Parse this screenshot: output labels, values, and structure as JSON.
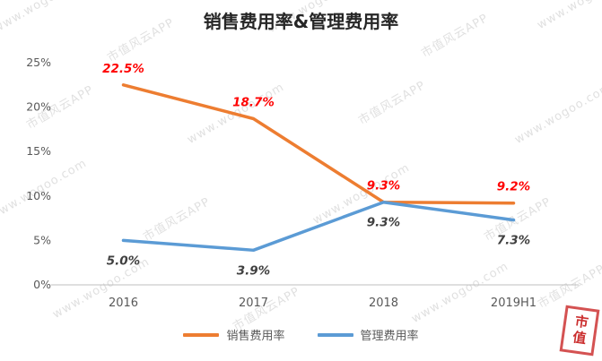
{
  "title": "销售费用率&管理费用率",
  "watermark": {
    "brand": "市值风云APP",
    "site": "www.wogoo.com",
    "seal_text": "市值"
  },
  "colors": {
    "title_text": "#262626",
    "axis_line": "#bfbfbf",
    "tick_text": "#595959",
    "legend_text": "#595959",
    "watermark_text": "#919191",
    "seal_red": "#c00000"
  },
  "chart_data": {
    "type": "line",
    "categories": [
      "2016",
      "2017",
      "2018",
      "2019H1"
    ],
    "series": [
      {
        "name": "销售费用率",
        "values": [
          22.5,
          18.7,
          9.3,
          9.2
        ],
        "labels": [
          "22.5%",
          "18.7%",
          "9.3%",
          "9.2%"
        ],
        "color": "#ED7D31",
        "label_color": "#FF0000",
        "label_position": "above"
      },
      {
        "name": "管理费用率",
        "values": [
          5.0,
          3.9,
          9.3,
          7.3
        ],
        "labels": [
          "5.0%",
          "3.9%",
          "9.3%",
          "7.3%"
        ],
        "color": "#5B9BD5",
        "label_color": "#404040",
        "label_position": "below"
      }
    ],
    "ylim": [
      0,
      25
    ],
    "ytick_step": 5,
    "ytick_labels": [
      "0%",
      "5%",
      "10%",
      "15%",
      "20%",
      "25%"
    ],
    "grid": false,
    "legend_position": "bottom"
  }
}
